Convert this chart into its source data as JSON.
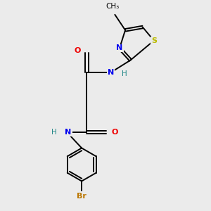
{
  "background_color": "#ebebeb",
  "bond_color": "#000000",
  "colors": {
    "N": "#0000ee",
    "O": "#ee0000",
    "S": "#bbbb00",
    "Br": "#bb7700",
    "C": "#000000",
    "H": "#228888"
  },
  "figsize": [
    3.0,
    3.0
  ],
  "dpi": 100
}
